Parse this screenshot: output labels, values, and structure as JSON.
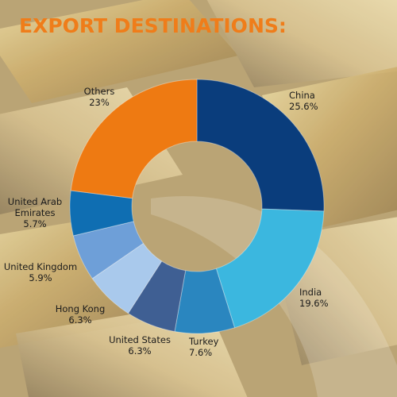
{
  "title": "EXPORT DESTINATIONS:",
  "colors": {
    "title": "#ef7d1a",
    "background": "#c9b27a"
  },
  "chart_data": {
    "type": "pie",
    "donut": true,
    "start_angle_deg": 0,
    "direction": "clockwise",
    "slices": [
      {
        "label_lines": [
          "China"
        ],
        "value": 25.6,
        "value_label": "25.6%",
        "color": "#0a3d7c"
      },
      {
        "label_lines": [
          "India"
        ],
        "value": 19.6,
        "value_label": "19.6%",
        "color": "#3bb7df"
      },
      {
        "label_lines": [
          "Turkey"
        ],
        "value": 7.6,
        "value_label": "7.6%",
        "color": "#2a86bf"
      },
      {
        "label_lines": [
          "United States"
        ],
        "value": 6.3,
        "value_label": "6.3%",
        "color": "#3f5f93"
      },
      {
        "label_lines": [
          "Hong Kong"
        ],
        "value": 6.3,
        "value_label": "6.3%",
        "color": "#a9c9ec"
      },
      {
        "label_lines": [
          "United Kingdom"
        ],
        "value": 5.9,
        "value_label": "5.9%",
        "color": "#6e9fd8"
      },
      {
        "label_lines": [
          "United Arab",
          "Emirates"
        ],
        "value": 5.7,
        "value_label": "5.7%",
        "color": "#0f6eb2"
      },
      {
        "label_lines": [
          "Others"
        ],
        "value": 23,
        "value_label": "23%",
        "color": "#ee7a12"
      }
    ]
  }
}
